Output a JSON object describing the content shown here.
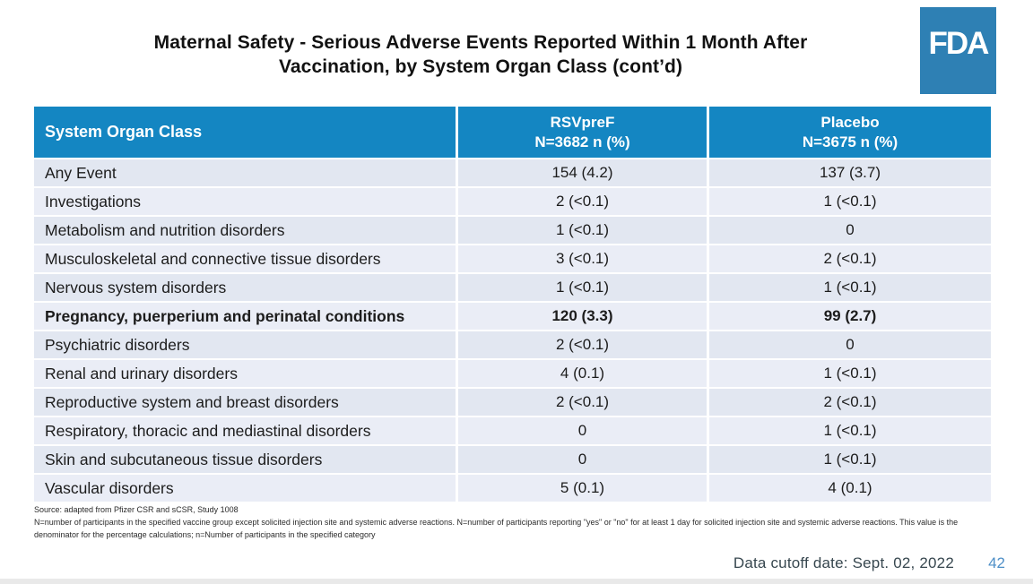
{
  "title": {
    "line1": "Maternal Safety - Serious Adverse Events Reported Within 1 Month After",
    "line2": "Vaccination, by System Organ Class (cont’d)"
  },
  "logo": {
    "text": "FDA"
  },
  "table": {
    "header": {
      "col1": "System Organ Class",
      "col2_line1": "RSVpreF",
      "col2_line2": "N=3682 n (%)",
      "col3_line1": "Placebo",
      "col3_line2": "N=3675 n (%)"
    },
    "rows": [
      {
        "soc": "Any Event",
        "rsvpref": "154 (4.2)",
        "placebo": "137 (3.7)",
        "bold": false
      },
      {
        "soc": "Investigations",
        "rsvpref": "2 (<0.1)",
        "placebo": "1 (<0.1)",
        "bold": false
      },
      {
        "soc": "Metabolism and nutrition disorders",
        "rsvpref": "1 (<0.1)",
        "placebo": "0",
        "bold": false
      },
      {
        "soc": "Musculoskeletal and connective tissue disorders",
        "rsvpref": "3 (<0.1)",
        "placebo": "2 (<0.1)",
        "bold": false
      },
      {
        "soc": "Nervous system disorders",
        "rsvpref": "1 (<0.1)",
        "placebo": "1 (<0.1)",
        "bold": false
      },
      {
        "soc": "Pregnancy, puerperium and perinatal conditions",
        "rsvpref": "120 (3.3)",
        "placebo": "99 (2.7)",
        "bold": true
      },
      {
        "soc": "Psychiatric disorders",
        "rsvpref": "2 (<0.1)",
        "placebo": "0",
        "bold": false
      },
      {
        "soc": "Renal and urinary disorders",
        "rsvpref": "4 (0.1)",
        "placebo": "1 (<0.1)",
        "bold": false
      },
      {
        "soc": "Reproductive system and breast disorders",
        "rsvpref": "2 (<0.1)",
        "placebo": "2 (<0.1)",
        "bold": false
      },
      {
        "soc": "Respiratory, thoracic and mediastinal disorders",
        "rsvpref": "0",
        "placebo": "1 (<0.1)",
        "bold": false
      },
      {
        "soc": "Skin and subcutaneous tissue disorders",
        "rsvpref": "0",
        "placebo": "1 (<0.1)",
        "bold": false
      },
      {
        "soc": "Vascular disorders",
        "rsvpref": "5 (0.1)",
        "placebo": "4 (0.1)",
        "bold": false
      }
    ]
  },
  "footnotes": {
    "source": "Source: adapted from Pfizer CSR and sCSR, Study 1008",
    "note": "N=number of participants in the specified vaccine group except solicited injection site and systemic adverse reactions. N=number of participants reporting \"yes\" or \"no\" for at least 1 day for solicited injection site and systemic adverse reactions. This value is the denominator for the percentage calculations; n=Number of participants in the specified category"
  },
  "footer": {
    "data_cutoff": "Data cutoff date: Sept. 02, 2022",
    "page_number": "42"
  },
  "colors": {
    "header_blue": "#1486c2",
    "logo_blue": "#2e80b4",
    "row_light": "#eaedf6",
    "row_dark": "#e2e7f1",
    "page_number_blue": "#4e8fc7",
    "cutoff_text": "#37474f"
  }
}
